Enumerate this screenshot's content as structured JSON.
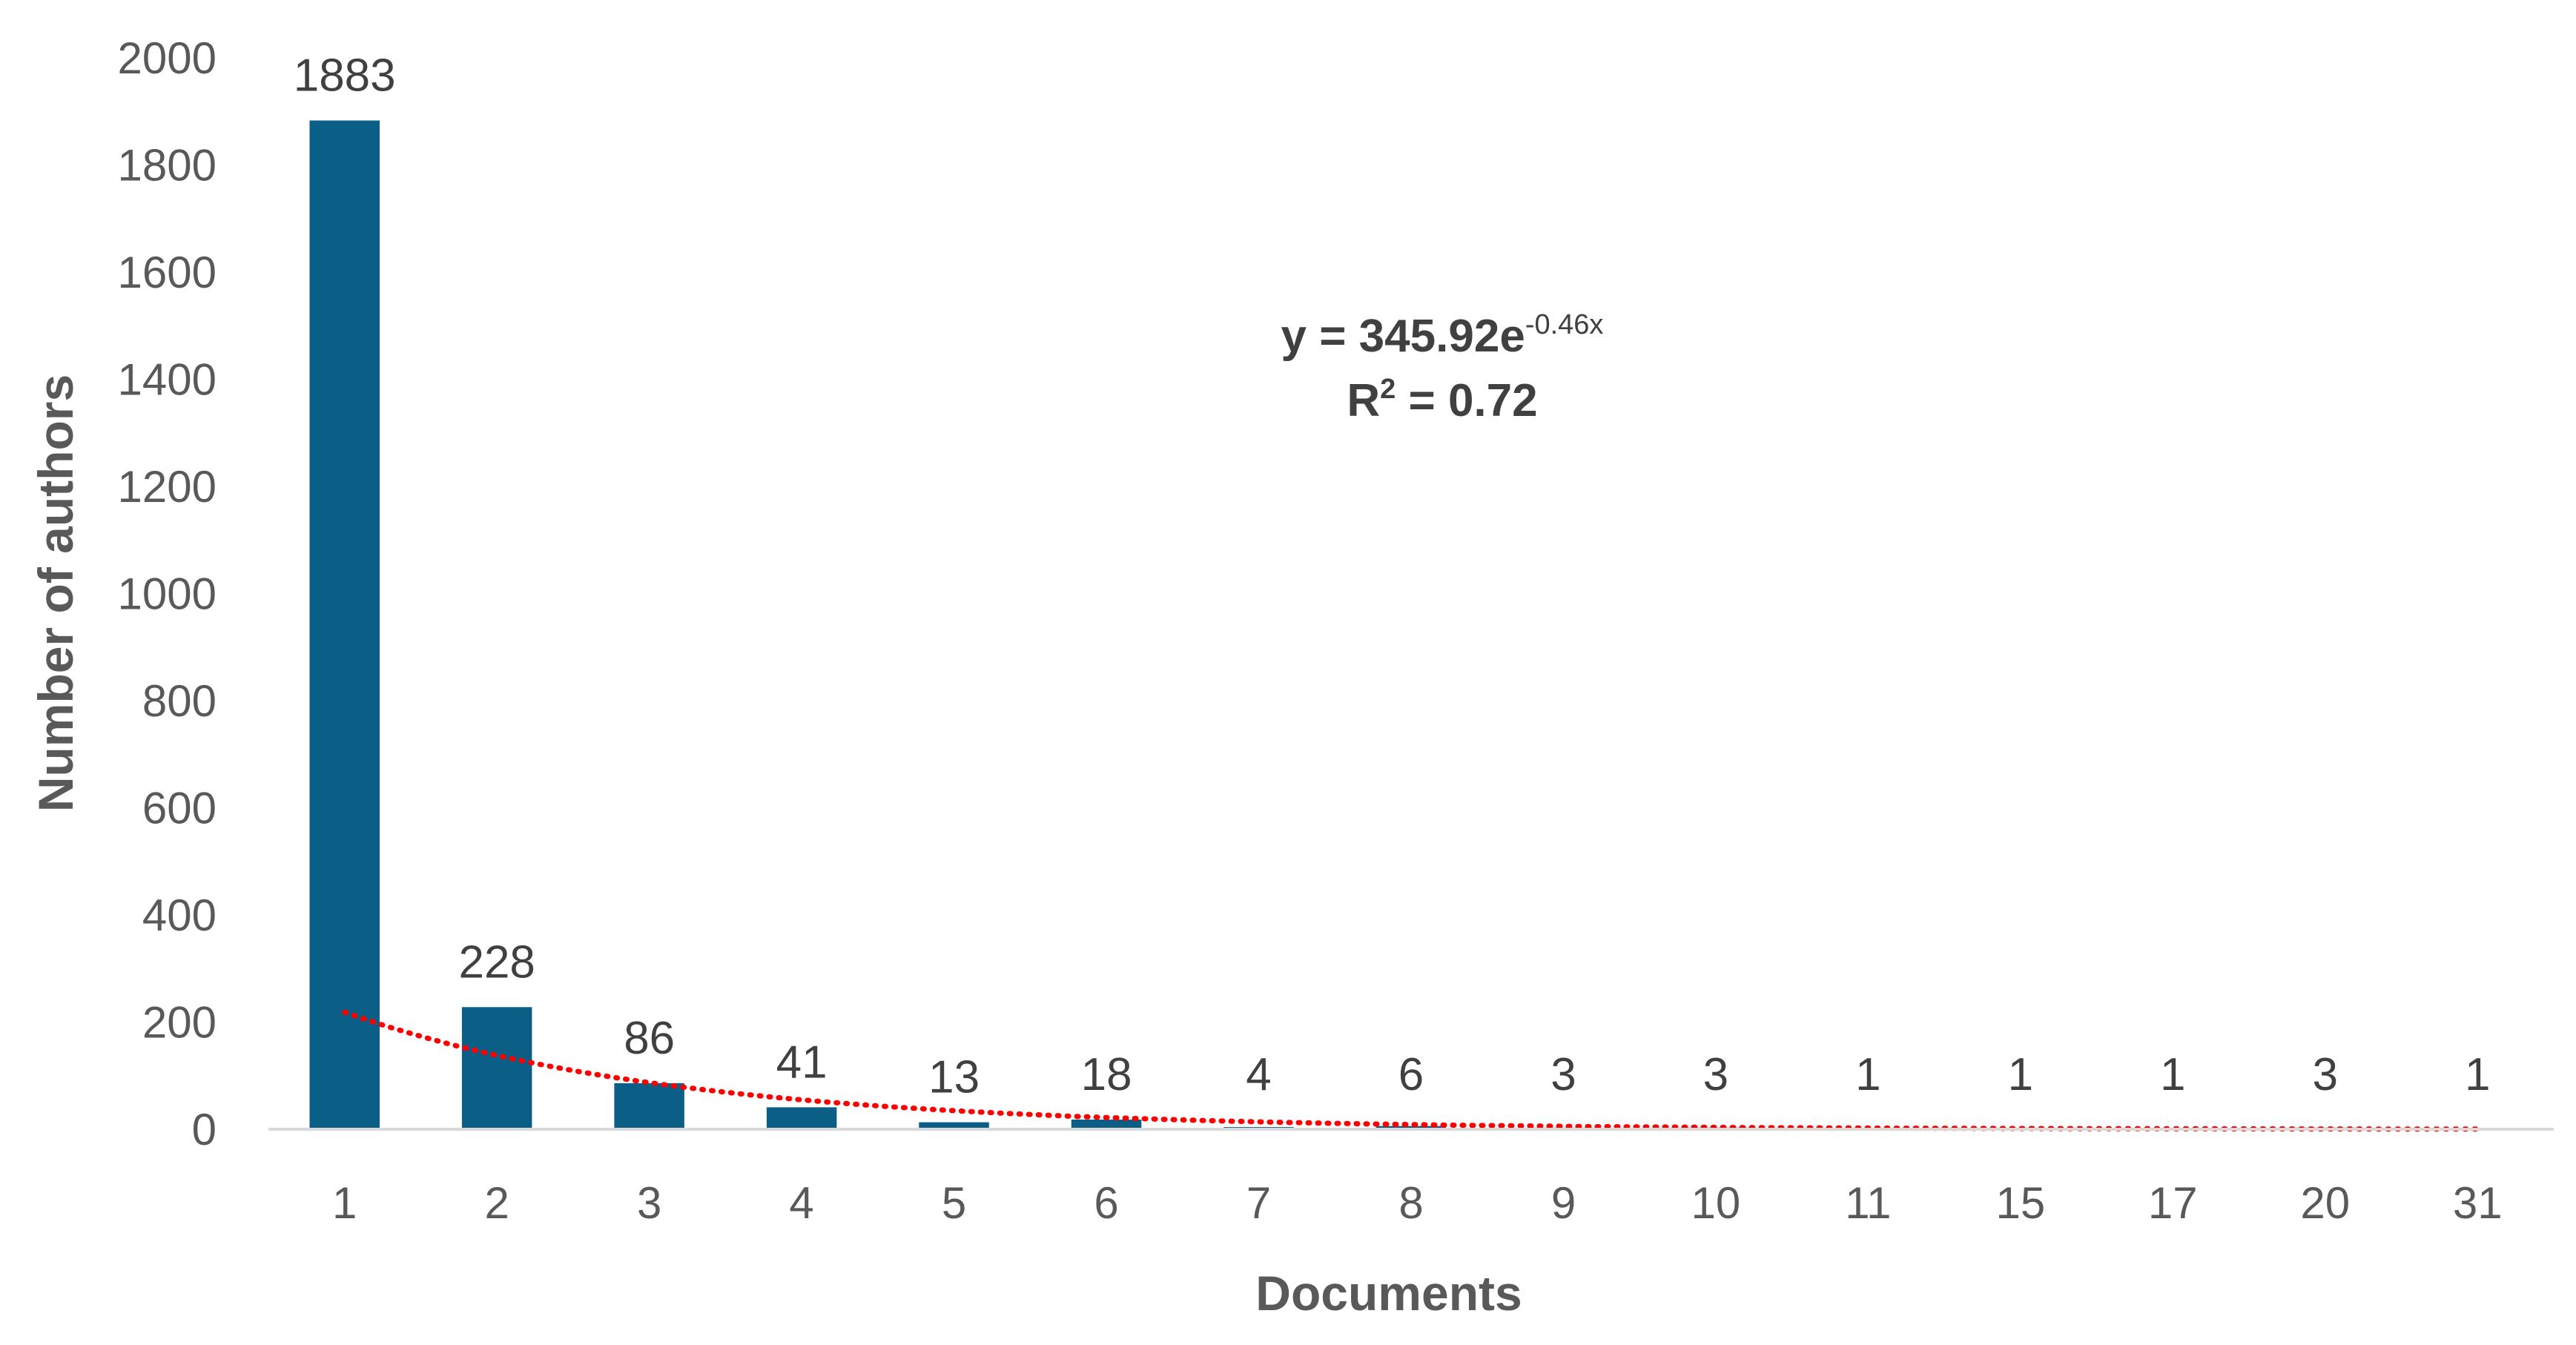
{
  "chart_data": {
    "type": "bar",
    "categories": [
      "1",
      "2",
      "3",
      "4",
      "5",
      "6",
      "7",
      "8",
      "9",
      "10",
      "11",
      "15",
      "17",
      "20",
      "31"
    ],
    "values": [
      1883,
      228,
      86,
      41,
      13,
      18,
      4,
      6,
      3,
      3,
      1,
      1,
      1,
      3,
      1
    ],
    "data_labels": [
      "1883",
      "228",
      "86",
      "41",
      "13",
      "18",
      "4",
      "6",
      "3",
      "3",
      "1",
      "1",
      "1",
      "3",
      "1"
    ],
    "xlabel": "Documents",
    "ylabel": "Number of authors",
    "ylim": [
      0,
      2000
    ],
    "yticks": [
      0,
      200,
      400,
      600,
      800,
      1000,
      1200,
      1400,
      1600,
      1800,
      2000
    ],
    "grid": false,
    "trendline": {
      "type": "exponential",
      "a": 345.92,
      "b": -0.46,
      "equation_prefix": "y = 345.92e",
      "equation_exponent": "-0.46x",
      "r2_prefix": "R",
      "r2_superscript": "2",
      "r2_suffix": " = 0.72"
    },
    "colors": {
      "bar": "#0b5f86",
      "trendline": "#ff0000",
      "axis": "#d9d9d9"
    }
  }
}
